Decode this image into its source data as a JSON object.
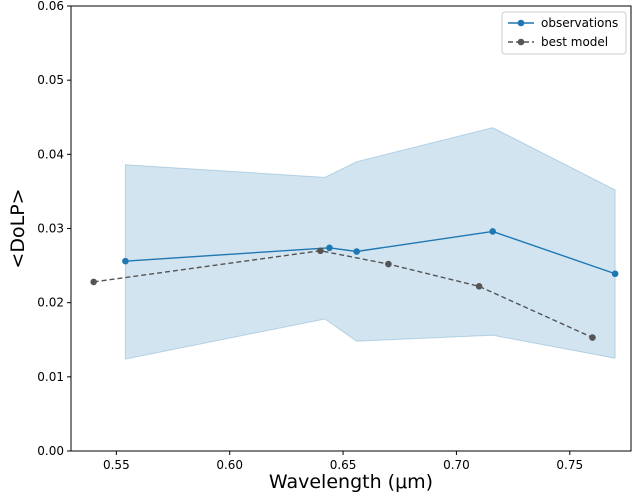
{
  "chart_data": {
    "type": "line",
    "xlabel": "Wavelength (μm)",
    "ylabel": "<DoLP>",
    "xlim": [
      0.53,
      0.777
    ],
    "ylim": [
      0.0,
      0.06
    ],
    "grid": false,
    "legend_position": "top-right",
    "x_ticks": [
      0.55,
      0.6,
      0.65,
      0.7,
      0.75
    ],
    "x_tick_labels": [
      "0.55",
      "0.60",
      "0.65",
      "0.70",
      "0.75"
    ],
    "y_ticks": [
      0.0,
      0.01,
      0.02,
      0.03,
      0.04,
      0.05,
      0.06
    ],
    "y_tick_labels": [
      "0.00",
      "0.01",
      "0.02",
      "0.03",
      "0.04",
      "0.05",
      "0.06"
    ],
    "series": [
      {
        "name": "observations",
        "color": "#1f77b4",
        "line_style": "solid",
        "x": [
          0.554,
          0.644,
          0.656,
          0.716,
          0.77
        ],
        "y": [
          0.0256,
          0.0274,
          0.0269,
          0.0296,
          0.0239
        ]
      },
      {
        "name": "best model",
        "color": "#555555",
        "line_style": "dashed",
        "x": [
          0.54,
          0.64,
          0.67,
          0.71,
          0.76
        ],
        "y": [
          0.0228,
          0.027,
          0.0252,
          0.0222,
          0.0153
        ]
      }
    ],
    "band": {
      "color": "#1f77b4",
      "opacity": 0.2,
      "x": [
        0.554,
        0.642,
        0.656,
        0.716,
        0.77
      ],
      "upper": [
        0.0386,
        0.0369,
        0.039,
        0.0436,
        0.0352
      ],
      "lower": [
        0.0124,
        0.0178,
        0.0148,
        0.0156,
        0.0125
      ]
    }
  }
}
